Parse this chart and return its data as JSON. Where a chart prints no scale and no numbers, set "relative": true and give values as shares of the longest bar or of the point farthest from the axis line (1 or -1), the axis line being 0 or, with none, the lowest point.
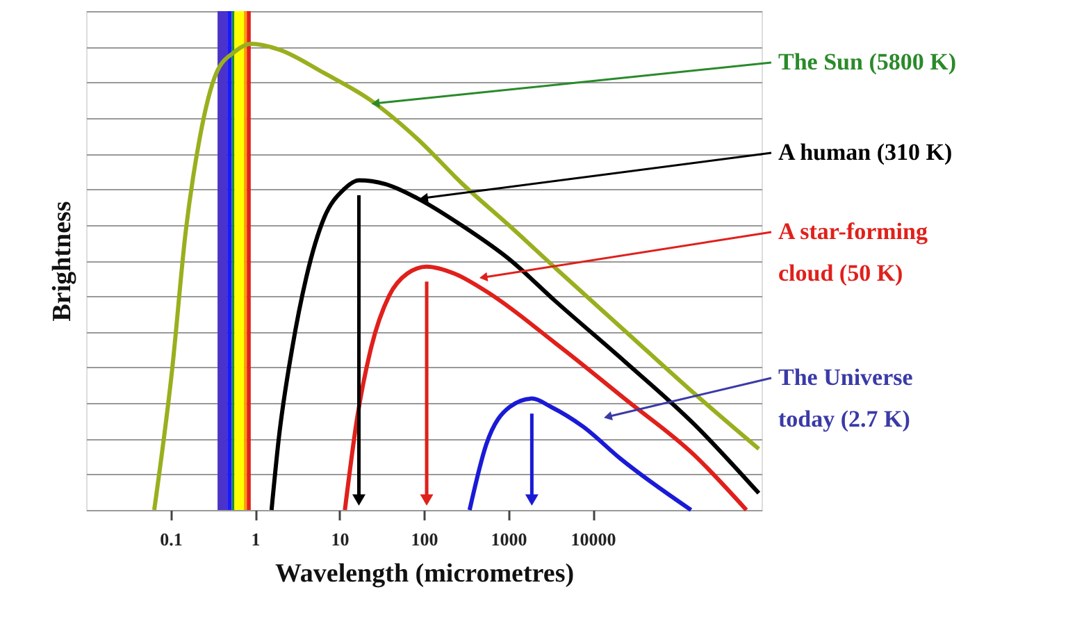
{
  "chart_data": {
    "type": "line",
    "relative": true,
    "xlabel": "Wavelength (micrometres)",
    "ylabel": "Brightness",
    "log": "x",
    "xlim": [
      0.01,
      1000000
    ],
    "xticks": [
      0.1,
      1,
      10,
      100,
      1000,
      10000
    ],
    "grid": "y",
    "marker": "none",
    "line_style": "solid",
    "series": [
      {
        "color": "#9aaf1e",
        "x": [
          0.064,
          0.104,
          0.151,
          0.221,
          0.348,
          0.568,
          0.89,
          1.9,
          6.6,
          23.8,
          82.8,
          288,
          1040,
          3610,
          23800,
          157000,
          927000
        ],
        "values": [
          0,
          0.299,
          0.597,
          0.797,
          0.937,
          0.982,
          1.0,
          0.988,
          0.937,
          0.878,
          0.797,
          0.699,
          0.609,
          0.519,
          0.385,
          0.251,
          0.131
        ]
      },
      {
        "color": "#000000",
        "x": [
          1.57,
          1.9,
          2.77,
          4.05,
          6.6,
          11.2,
          17,
          34.8,
          82.8,
          288,
          1040,
          3610,
          23800,
          157000,
          927000
        ],
        "values": [
          0,
          0.149,
          0.349,
          0.499,
          0.627,
          0.687,
          0.707,
          0.699,
          0.669,
          0.609,
          0.537,
          0.448,
          0.319,
          0.185,
          0.036
        ]
      },
      {
        "color": "#e0201b",
        "x": [
          11.6,
          16.3,
          23.8,
          38.9,
          63.5,
          108,
          230,
          547,
          3610,
          23800,
          157000,
          661000
        ],
        "values": [
          0,
          0.2,
          0.349,
          0.46,
          0.507,
          0.522,
          0.507,
          0.469,
          0.358,
          0.239,
          0.119,
          0
        ]
      },
      {
        "color": "#1a1ad6",
        "x": [
          348,
          547,
          1040,
          1900,
          3220,
          7670,
          21300,
          146000
        ],
        "values": [
          0,
          0.14,
          0.221,
          0.239,
          0.221,
          0.179,
          0.11,
          0
        ]
      }
    ],
    "bands": [
      {
        "axis": "x",
        "from": 0.36,
        "to": 0.47,
        "color": "#4b32c8"
      },
      {
        "axis": "x",
        "from": 0.47,
        "to": 0.53,
        "color": "#1a1aff"
      },
      {
        "axis": "x",
        "from": 0.53,
        "to": 0.57,
        "color": "#1a8a3a"
      },
      {
        "axis": "x",
        "from": 0.57,
        "to": 0.74,
        "color": "#ffff00"
      },
      {
        "axis": "x",
        "from": 0.74,
        "to": 0.8,
        "color": "#ff9900"
      },
      {
        "axis": "x",
        "from": 0.8,
        "to": 0.89,
        "color": "#e0201b"
      }
    ],
    "annotations": [
      {
        "text": "The Sun (5800 K)",
        "x": 26.7,
        "y": 0.872
      },
      {
        "text": "A human (310 K)",
        "x": 100,
        "y": 0.669
      },
      {
        "text": "A star-forming\ncloud  (50 K)",
        "x": 507,
        "y": 0.499
      },
      {
        "text": "The Universe\ntoday (2.7 K)",
        "x": 15100,
        "y": 0.2
      }
    ]
  }
}
